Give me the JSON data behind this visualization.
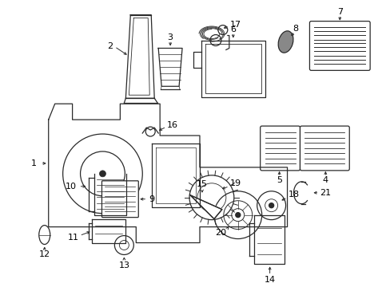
{
  "background_color": "#ffffff",
  "figsize": [
    4.89,
    3.6
  ],
  "dpi": 100,
  "line_color": "#2a2a2a",
  "lw": 0.9
}
